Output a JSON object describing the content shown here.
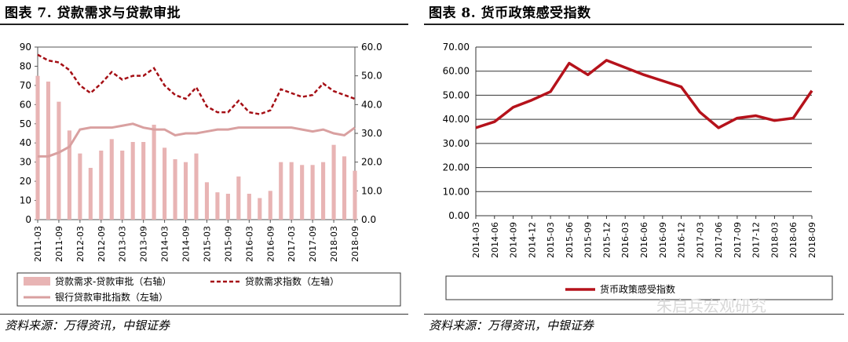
{
  "left": {
    "title": "图表 7. 贷款需求与贷款审批",
    "source": "资料来源：万得资讯，中银证券"
  },
  "right": {
    "title": "图表 8. 货币政策感受指数",
    "source": "资料来源：万得资讯，中银证券"
  },
  "watermark": "朱启兵宏观研究",
  "colors": {
    "bar": "#e8b4b4",
    "demand_line": "#a50f15",
    "approval_line": "#d9a0a0",
    "policy_line": "#b5121b"
  },
  "chart_data": [
    {
      "type": "bar+line",
      "categories": [
        "2011-03",
        "2011-06",
        "2011-09",
        "2011-12",
        "2012-03",
        "2012-06",
        "2012-09",
        "2012-12",
        "2013-03",
        "2013-06",
        "2013-09",
        "2013-12",
        "2014-03",
        "2014-06",
        "2014-09",
        "2014-12",
        "2015-03",
        "2015-06",
        "2015-09",
        "2015-12",
        "2016-03",
        "2016-06",
        "2016-09",
        "2016-12",
        "2017-03",
        "2017-06",
        "2017-09",
        "2017-12",
        "2018-03",
        "2018-06",
        "2018-09"
      ],
      "xtick_labels": [
        "2011-03",
        "2011-09",
        "2012-03",
        "2012-09",
        "2013-03",
        "2013-09",
        "2014-03",
        "2014-09",
        "2015-03",
        "2015-09",
        "2016-03",
        "2016-09",
        "2017-03",
        "2017-09",
        "2018-03",
        "2018-09"
      ],
      "yleft": {
        "ylim": [
          0,
          90
        ],
        "ticks": [
          "0",
          "10",
          "20",
          "30",
          "40",
          "50",
          "60",
          "70",
          "80",
          "90"
        ]
      },
      "yright": {
        "ylim": [
          0,
          60
        ],
        "ticks": [
          "0.0",
          "10.0",
          "20.0",
          "30.0",
          "40.0",
          "50.0",
          "60.0"
        ]
      },
      "series": [
        {
          "name": "贷款需求-贷款审批（右轴）",
          "type": "bar",
          "axis": "right",
          "values": [
            50,
            48,
            41,
            31,
            23,
            18,
            24,
            28,
            24,
            27,
            27,
            33,
            25,
            21,
            20,
            23,
            13,
            9.5,
            9,
            15,
            9,
            7.5,
            10,
            20,
            20,
            19,
            19,
            20,
            26,
            22,
            17
          ]
        },
        {
          "name": "贷款需求指数（左轴）",
          "type": "line",
          "style": "dashed",
          "axis": "left",
          "values": [
            86,
            83,
            82,
            78,
            70,
            66,
            71,
            77,
            73,
            75,
            75,
            79,
            70,
            65,
            63,
            69,
            59,
            56,
            56,
            62,
            56,
            55,
            57,
            68,
            66,
            64,
            65,
            71,
            67,
            65,
            63
          ]
        },
        {
          "name": "银行贷款审批指数（左轴）",
          "type": "line",
          "style": "solid",
          "axis": "left",
          "values": [
            33,
            33,
            35,
            38,
            47,
            48,
            48,
            48,
            49,
            50,
            48,
            47,
            47,
            44,
            45,
            45,
            46,
            47,
            47,
            48,
            48,
            48,
            48,
            48,
            48,
            47,
            46,
            47,
            45,
            44,
            48
          ]
        }
      ]
    },
    {
      "type": "line",
      "categories": [
        "2014-03",
        "2014-06",
        "2014-09",
        "2014-12",
        "2015-03",
        "2015-06",
        "2015-09",
        "2015-12",
        "2016-03",
        "2016-06",
        "2016-09",
        "2016-12",
        "2017-03",
        "2017-06",
        "2017-09",
        "2017-12",
        "2018-03",
        "2018-06",
        "2018-09"
      ],
      "ylim": [
        0,
        70
      ],
      "yticks": [
        "0.00",
        "10.00",
        "20.00",
        "30.00",
        "40.00",
        "50.00",
        "60.00",
        "70.00"
      ],
      "series": [
        {
          "name": "货币政策感受指数",
          "values": [
            36.5,
            39,
            45,
            48,
            51.5,
            63.3,
            58.5,
            64.5,
            61.5,
            58.5,
            56,
            53.5,
            43,
            36.5,
            40.5,
            41.5,
            39.5,
            40.5,
            51.9
          ]
        }
      ]
    }
  ]
}
